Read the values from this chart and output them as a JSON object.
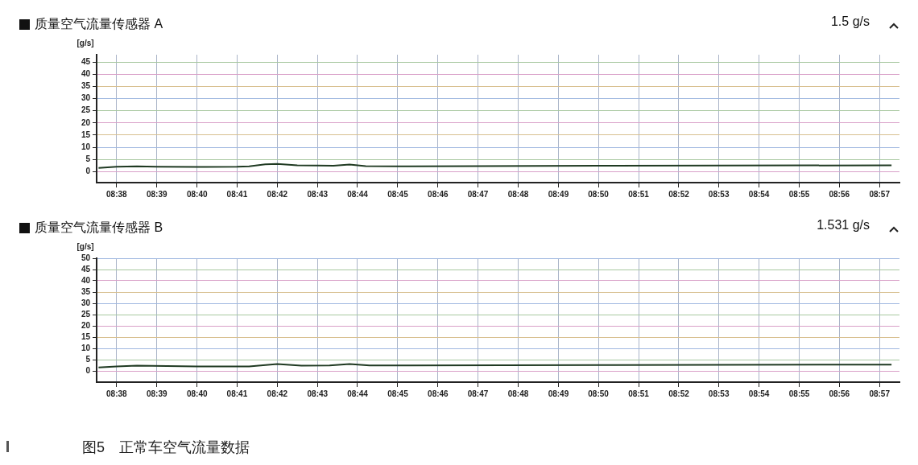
{
  "chart_data": [
    {
      "type": "line",
      "title": "质量空气流量传感器 A",
      "ylabel": "[g/s]",
      "annotations": [
        "1.5 g/s"
      ],
      "grid": true,
      "marker": "none",
      "line_style": "solid",
      "x": [
        8.6258,
        8.6333,
        8.6417,
        8.65,
        8.6667,
        8.6833,
        8.6883,
        8.695,
        8.7,
        8.7083,
        8.7167,
        8.7233,
        8.73,
        8.7367,
        8.75,
        8.7833,
        8.8333,
        8.8833,
        8.955
      ],
      "series": [
        {
          "color": "#1f3a22",
          "values": [
            1.5,
            2.0,
            2.2,
            2.0,
            1.9,
            2.0,
            2.2,
            3.0,
            3.2,
            2.6,
            2.5,
            2.4,
            2.9,
            2.3,
            2.2,
            2.3,
            2.4,
            2.5,
            2.6
          ]
        }
      ],
      "xlim": [
        8.625,
        8.9583
      ],
      "ylim": [
        -4.5,
        48
      ],
      "xticks": [
        {
          "value": 8.6333,
          "label": "08:38"
        },
        {
          "value": 8.65,
          "label": "08:39"
        },
        {
          "value": 8.6667,
          "label": "08:40"
        },
        {
          "value": 8.6833,
          "label": "08:41"
        },
        {
          "value": 8.7,
          "label": "08:42"
        },
        {
          "value": 8.7167,
          "label": "08:43"
        },
        {
          "value": 8.7333,
          "label": "08:44"
        },
        {
          "value": 8.75,
          "label": "08:45"
        },
        {
          "value": 8.7667,
          "label": "08:46"
        },
        {
          "value": 8.7833,
          "label": "08:47"
        },
        {
          "value": 8.8,
          "label": "08:48"
        },
        {
          "value": 8.8167,
          "label": "08:49"
        },
        {
          "value": 8.8333,
          "label": "08:50"
        },
        {
          "value": 8.85,
          "label": "08:51"
        },
        {
          "value": 8.8667,
          "label": "08:52"
        },
        {
          "value": 8.8833,
          "label": "08:53"
        },
        {
          "value": 8.9,
          "label": "08:54"
        },
        {
          "value": 8.9167,
          "label": "08:55"
        },
        {
          "value": 8.9333,
          "label": "08:56"
        },
        {
          "value": 8.95,
          "label": "08:57"
        }
      ],
      "yticks": [
        0,
        5,
        10,
        15,
        20,
        25,
        30,
        35,
        40,
        45
      ]
    },
    {
      "type": "line",
      "title": "质量空气流量传感器 B",
      "ylabel": "[g/s]",
      "annotations": [
        "1.531 g/s",
        "图5　正常车空气流量数据"
      ],
      "grid": true,
      "marker": "none",
      "line_style": "solid",
      "x": [
        8.6258,
        8.6333,
        8.6417,
        8.6667,
        8.6883,
        8.7,
        8.71,
        8.7217,
        8.73,
        8.7383,
        8.75,
        8.8333,
        8.955
      ],
      "series": [
        {
          "color": "#1f3a22",
          "values": [
            1.5,
            2.0,
            2.3,
            2.0,
            2.0,
            3.0,
            2.3,
            2.4,
            3.0,
            2.4,
            2.4,
            2.6,
            2.8
          ]
        }
      ],
      "xlim": [
        8.625,
        8.9583
      ],
      "ylim": [
        -5,
        50
      ],
      "xticks": [
        {
          "value": 8.6333,
          "label": "08:38"
        },
        {
          "value": 8.65,
          "label": "08:39"
        },
        {
          "value": 8.6667,
          "label": "08:40"
        },
        {
          "value": 8.6833,
          "label": "08:41"
        },
        {
          "value": 8.7,
          "label": "08:42"
        },
        {
          "value": 8.7167,
          "label": "08:43"
        },
        {
          "value": 8.7333,
          "label": "08:44"
        },
        {
          "value": 8.75,
          "label": "08:45"
        },
        {
          "value": 8.7667,
          "label": "08:46"
        },
        {
          "value": 8.7833,
          "label": "08:47"
        },
        {
          "value": 8.8,
          "label": "08:48"
        },
        {
          "value": 8.8167,
          "label": "08:49"
        },
        {
          "value": 8.8333,
          "label": "08:50"
        },
        {
          "value": 8.85,
          "label": "08:51"
        },
        {
          "value": 8.8667,
          "label": "08:52"
        },
        {
          "value": 8.8833,
          "label": "08:53"
        },
        {
          "value": 8.9,
          "label": "08:54"
        },
        {
          "value": 8.9167,
          "label": "08:55"
        },
        {
          "value": 8.9333,
          "label": "08:56"
        },
        {
          "value": 8.95,
          "label": "08:57"
        }
      ],
      "yticks": [
        0,
        5,
        10,
        15,
        20,
        25,
        30,
        35,
        40,
        45,
        50
      ]
    }
  ]
}
